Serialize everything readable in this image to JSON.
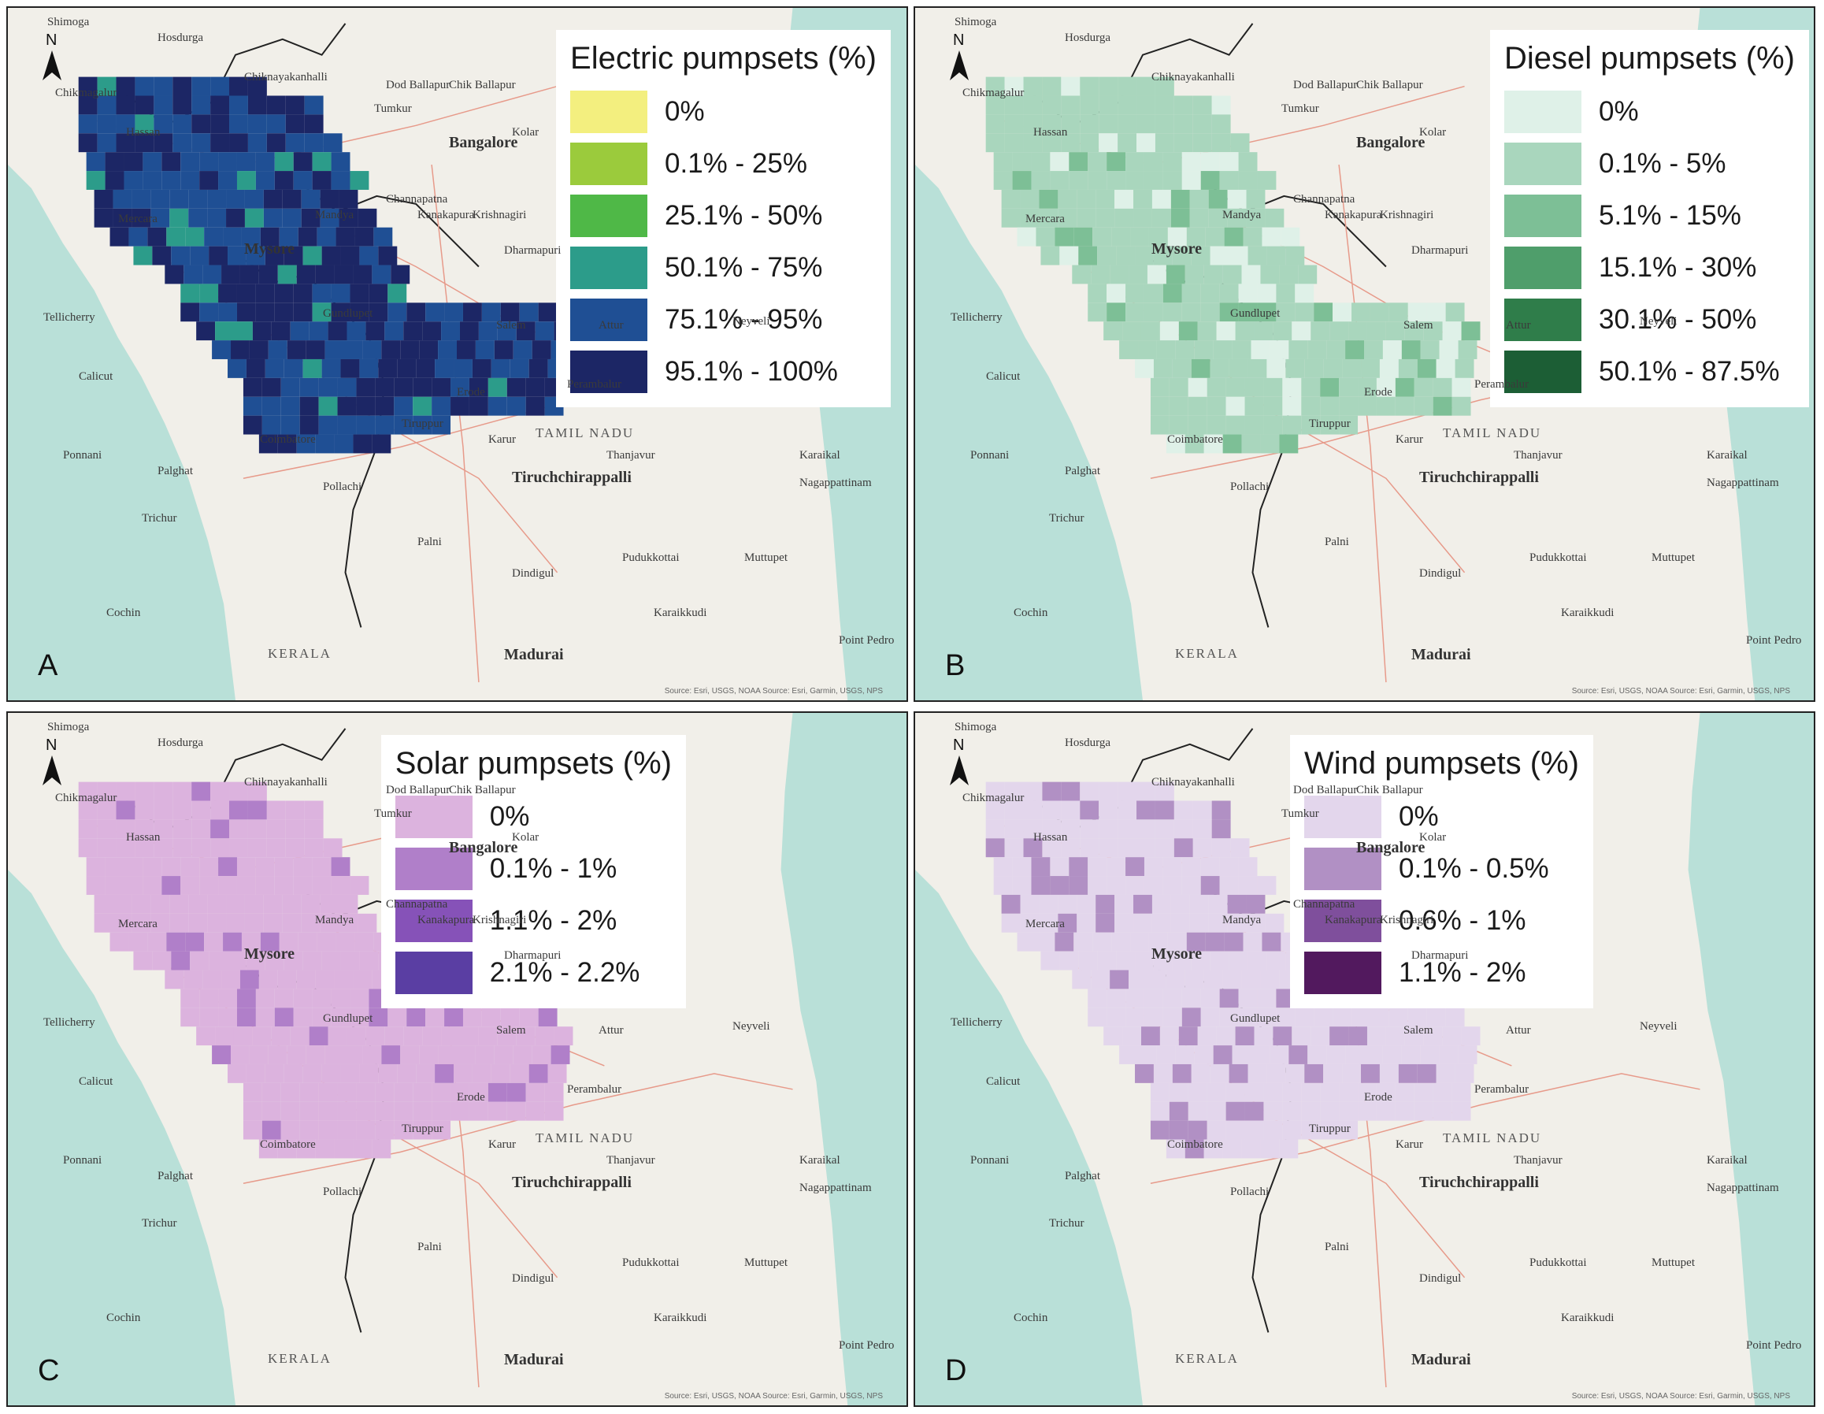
{
  "panels": [
    {
      "letter": "A",
      "legend_title": "Electric pumpsets (%)",
      "classes": [
        {
          "label": "0%",
          "color": "#f3ef7f"
        },
        {
          "label": "0.1% - 25%",
          "color": "#9bcb3c"
        },
        {
          "label": "25.1% - 50%",
          "color": "#4fb847"
        },
        {
          "label": "50.1% - 75%",
          "color": "#2c9c8a"
        },
        {
          "label": "75.1% - 95%",
          "color": "#1f4f94"
        },
        {
          "label": "95.1% - 100%",
          "color": "#1c2665"
        }
      ]
    },
    {
      "letter": "B",
      "legend_title": "Diesel pumpsets (%)",
      "classes": [
        {
          "label": "0%",
          "color": "#dff1e8"
        },
        {
          "label": "0.1% - 5%",
          "color": "#a9d6bd"
        },
        {
          "label": "5.1% - 15%",
          "color": "#7dbf96"
        },
        {
          "label": "15.1% - 30%",
          "color": "#4f9e6b"
        },
        {
          "label": "30.1% - 50%",
          "color": "#2f7d4a"
        },
        {
          "label": "50.1% - 87.5%",
          "color": "#1c5e35"
        }
      ]
    },
    {
      "letter": "C",
      "legend_title": "Solar pumpsets (%)",
      "classes": [
        {
          "label": "0%",
          "color": "#dcb3de"
        },
        {
          "label": "0.1% - 1%",
          "color": "#b07fc9"
        },
        {
          "label": "1.1% - 2%",
          "color": "#8652b8"
        },
        {
          "label": "2.1% - 2.2%",
          "color": "#5a3ea3"
        }
      ]
    },
    {
      "letter": "D",
      "legend_title": "Wind pumpsets (%)",
      "classes": [
        {
          "label": "0%",
          "color": "#e3d6ec"
        },
        {
          "label": "0.1% - 0.5%",
          "color": "#b190c4"
        },
        {
          "label": "0.6% - 1%",
          "color": "#7f4f9c"
        },
        {
          "label": "1.1% - 2%",
          "color": "#52195e"
        }
      ]
    }
  ],
  "map": {
    "north_label": "N",
    "places_common": [
      "Shimoga",
      "Hosdurga",
      "Chiknayakanhalli",
      "Chikmagalur",
      "Dod Ballapur",
      "Chik Ballapur",
      "Tumkur",
      "Kolar",
      "Bangalore",
      "Hassan",
      "Channapatna",
      "Mandya",
      "Kanakapura",
      "Krishnagiri",
      "Mercara",
      "Mysore",
      "Dharmapuri",
      "Gundlupet",
      "Tellicherry",
      "Salem",
      "Attur",
      "Neyveli",
      "Calicut",
      "Perambalur",
      "Erode",
      "Tiruppur",
      "Coimbatore",
      "Ponnani",
      "Palghat",
      "Karur",
      "Tiruchchirappalli",
      "Thanjavur",
      "Karaikal",
      "Nagappattinam",
      "Pollachi",
      "Palni",
      "Dindigul",
      "Pudukkottai",
      "Muttupet",
      "Trichur",
      "Karaikkudi",
      "Cochin",
      "Madurai",
      "Point Pedro",
      "KERALA",
      "TAMIL NADU"
    ],
    "attribution": "Source: Esri, USGS, NOAA Source: Esri, Garmin, USGS, NPS"
  }
}
